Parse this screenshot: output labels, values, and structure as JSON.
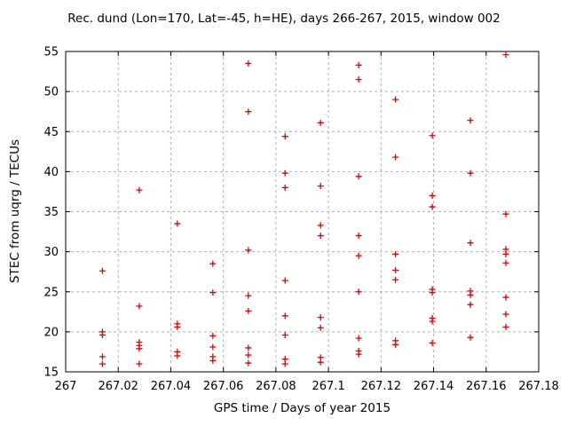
{
  "chart_data": {
    "type": "scatter",
    "title": "Rec. dund (Lon=170, Lat=-45, h=HE), days 266-267, 2015, window 002",
    "xlabel": "GPS time / Days of year 2015",
    "ylabel": "STEC from uqrg / TECUs",
    "xlim": [
      267.0,
      267.18
    ],
    "ylim": [
      15,
      55
    ],
    "grid": "dashed",
    "legend": "none",
    "x_ticks": [
      267.0,
      267.02,
      267.04,
      267.06,
      267.08,
      267.1,
      267.12,
      267.14,
      267.16,
      267.18
    ],
    "x_tick_labels": [
      "267",
      "267.02",
      "267.04",
      "267.06",
      "267.08",
      "267.1",
      "267.12",
      "267.14",
      "267.16",
      "267.18"
    ],
    "y_ticks": [
      15,
      20,
      25,
      30,
      35,
      40,
      45,
      50,
      55
    ],
    "y_tick_labels": [
      "15",
      "20",
      "25",
      "30",
      "35",
      "40",
      "45",
      "50",
      "55"
    ],
    "marker": {
      "shape": "plus",
      "size": 7,
      "color": "#dd0000"
    },
    "colors": {
      "grid": "#b0b0b0",
      "border": "#000000",
      "text": "#000000",
      "background": "#ffffff"
    },
    "points": [
      [
        267.014,
        27.6
      ],
      [
        267.014,
        20.0
      ],
      [
        267.014,
        19.6
      ],
      [
        267.014,
        16.9
      ],
      [
        267.014,
        16.0
      ],
      [
        267.028,
        37.7
      ],
      [
        267.028,
        23.2
      ],
      [
        267.028,
        18.7
      ],
      [
        267.028,
        18.3
      ],
      [
        267.028,
        17.9
      ],
      [
        267.028,
        16.0
      ],
      [
        267.0425,
        33.5
      ],
      [
        267.0425,
        21.0
      ],
      [
        267.0425,
        20.6
      ],
      [
        267.0425,
        17.5
      ],
      [
        267.0425,
        17.0
      ],
      [
        267.056,
        28.5
      ],
      [
        267.056,
        24.9
      ],
      [
        267.056,
        19.5
      ],
      [
        267.056,
        18.1
      ],
      [
        267.056,
        16.9
      ],
      [
        267.056,
        16.4
      ],
      [
        267.0695,
        53.5
      ],
      [
        267.0695,
        47.5
      ],
      [
        267.0695,
        30.2
      ],
      [
        267.0695,
        24.5
      ],
      [
        267.0695,
        22.6
      ],
      [
        267.0695,
        18.0
      ],
      [
        267.0695,
        17.1
      ],
      [
        267.0695,
        16.1
      ],
      [
        267.0835,
        44.4
      ],
      [
        267.0835,
        39.8
      ],
      [
        267.0835,
        38.0
      ],
      [
        267.0835,
        26.4
      ],
      [
        267.0835,
        22.0
      ],
      [
        267.0835,
        19.6
      ],
      [
        267.0835,
        16.6
      ],
      [
        267.0835,
        16.0
      ],
      [
        267.097,
        46.1
      ],
      [
        267.097,
        38.2
      ],
      [
        267.097,
        33.3
      ],
      [
        267.097,
        32.0
      ],
      [
        267.097,
        21.8
      ],
      [
        267.097,
        20.5
      ],
      [
        267.097,
        16.8
      ],
      [
        267.097,
        16.2
      ],
      [
        267.1115,
        53.3
      ],
      [
        267.1115,
        51.5
      ],
      [
        267.1115,
        39.4
      ],
      [
        267.1115,
        32.0
      ],
      [
        267.1115,
        29.5
      ],
      [
        267.1115,
        25.0
      ],
      [
        267.1115,
        19.2
      ],
      [
        267.1115,
        17.6
      ],
      [
        267.1115,
        17.2
      ],
      [
        267.1255,
        49.0
      ],
      [
        267.1255,
        41.8
      ],
      [
        267.1255,
        29.7
      ],
      [
        267.1255,
        27.7
      ],
      [
        267.1255,
        26.5
      ],
      [
        267.1255,
        18.9
      ],
      [
        267.1255,
        18.4
      ],
      [
        267.1395,
        44.5
      ],
      [
        267.1395,
        37.0
      ],
      [
        267.1395,
        35.6
      ],
      [
        267.1395,
        25.3
      ],
      [
        267.1395,
        24.9
      ],
      [
        267.1395,
        21.7
      ],
      [
        267.1395,
        21.3
      ],
      [
        267.1395,
        18.6
      ],
      [
        267.154,
        46.4
      ],
      [
        267.154,
        39.8
      ],
      [
        267.154,
        31.1
      ],
      [
        267.154,
        25.1
      ],
      [
        267.154,
        24.6
      ],
      [
        267.154,
        23.4
      ],
      [
        267.154,
        19.3
      ],
      [
        267.1675,
        54.6
      ],
      [
        267.1675,
        34.7
      ],
      [
        267.1675,
        30.3
      ],
      [
        267.1675,
        29.7
      ],
      [
        267.1675,
        28.6
      ],
      [
        267.1675,
        24.3
      ],
      [
        267.1675,
        22.2
      ],
      [
        267.1675,
        20.6
      ]
    ]
  }
}
